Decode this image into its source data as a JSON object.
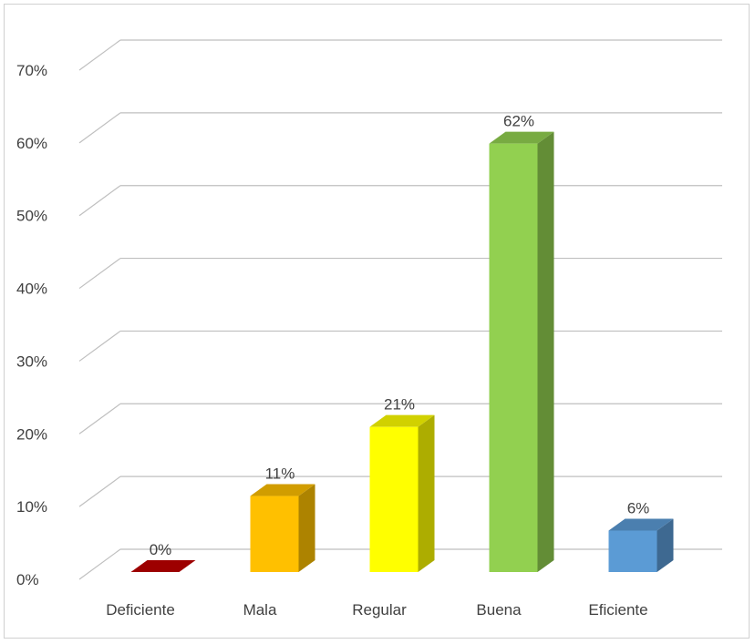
{
  "chart_data": {
    "type": "bar",
    "style": "3d-column",
    "categories": [
      "Deficiente",
      "Mala",
      "Regular",
      "Buena",
      "Eficiente"
    ],
    "values": [
      0,
      11,
      21,
      62,
      6
    ],
    "value_labels": [
      "0%",
      "11%",
      "21%",
      "62%",
      "6%"
    ],
    "colors": [
      "#c00000",
      "#ffc000",
      "#ffff00",
      "#92d050",
      "#5b9bd5"
    ],
    "y_ticks": [
      "0%",
      "10%",
      "20%",
      "30%",
      "40%",
      "50%",
      "60%",
      "70%"
    ],
    "ylim": [
      0,
      70
    ],
    "y_unit": "%",
    "grid": true,
    "legend": "none",
    "title": "",
    "xlabel": "",
    "ylabel": ""
  }
}
